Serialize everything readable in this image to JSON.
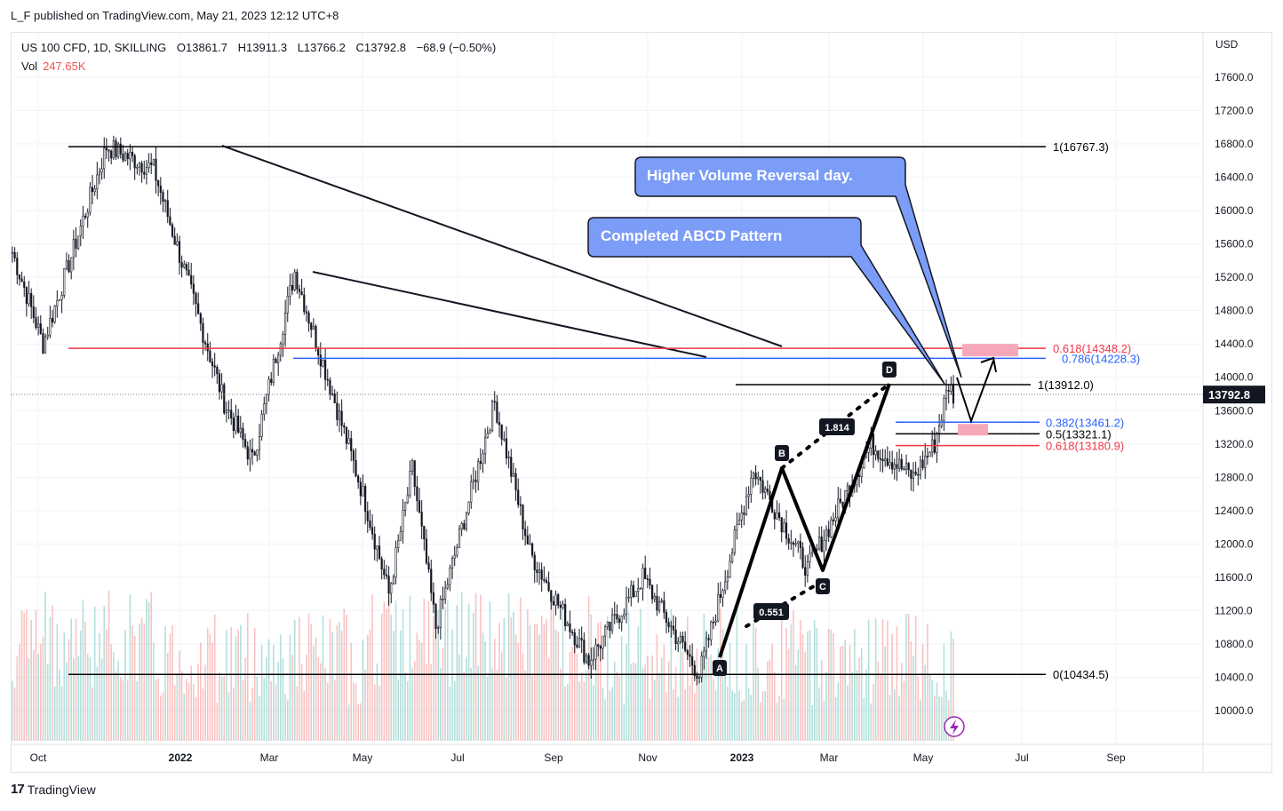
{
  "header": {
    "published": "L_F published on TradingView.com, May 21, 2023 12:12 UTC+8",
    "symbol": "US 100 CFD, 1D, SKILLING",
    "open": "O13861.7",
    "high": "H13911.3",
    "low": "L13766.2",
    "close": "C13792.8",
    "change": "−68.9 (−0.50%)",
    "vol_label": "Vol",
    "vol_value": "247.65K",
    "currency": "USD"
  },
  "footer": {
    "brand": "TradingView"
  },
  "colors": {
    "up": "#26a69a",
    "down": "#ef5350",
    "blue_level": "#2962ff",
    "red_level": "#f23645",
    "callout": "#7b9cf7"
  },
  "chart_data": {
    "type": "candlestick",
    "price_axis": {
      "min": 9800,
      "max": 17700,
      "ticks": [
        17600,
        17200,
        16800,
        16400,
        16000,
        15600,
        15200,
        14800,
        14400,
        14000,
        13600,
        13200,
        12800,
        12400,
        12000,
        11600,
        11200,
        10800,
        10400,
        10000
      ],
      "tick_labels": [
        "17600.0",
        "17200.0",
        "16800.0",
        "16400.0",
        "16000.0",
        "15600.0",
        "15200.0",
        "14800.0",
        "14400.0",
        "14000.0",
        "13600.0",
        "13200.0",
        "12800.0",
        "12400.0",
        "12000.0",
        "11600.0",
        "11200.0",
        "10800.0",
        "10400.0",
        "10000.0"
      ]
    },
    "time_axis": {
      "labels": [
        "Oct",
        "2022",
        "Mar",
        "May",
        "Jul",
        "Sep",
        "Nov",
        "2023",
        "Mar",
        "May",
        "Jul",
        "Sep"
      ]
    },
    "last_price": {
      "value": 13792.8,
      "label": "13792.8"
    },
    "swings": [
      {
        "t": 0,
        "p": 15500
      },
      {
        "t": 13,
        "p": 14400
      },
      {
        "t": 40,
        "p": 16767
      },
      {
        "t": 60,
        "p": 16500
      },
      {
        "t": 90,
        "p": 13700
      },
      {
        "t": 102,
        "p": 13000
      },
      {
        "t": 120,
        "p": 15265
      },
      {
        "t": 135,
        "p": 13900
      },
      {
        "t": 150,
        "p": 12500
      },
      {
        "t": 160,
        "p": 11400
      },
      {
        "t": 170,
        "p": 12900
      },
      {
        "t": 180,
        "p": 11000
      },
      {
        "t": 205,
        "p": 13700
      },
      {
        "t": 220,
        "p": 11900
      },
      {
        "t": 245,
        "p": 10600
      },
      {
        "t": 268,
        "p": 11600
      },
      {
        "t": 282,
        "p": 10900
      },
      {
        "t": 292,
        "p": 10434
      },
      {
        "t": 315,
        "p": 12900
      },
      {
        "t": 338,
        "p": 11700
      },
      {
        "t": 365,
        "p": 13200
      },
      {
        "t": 383,
        "p": 12800
      },
      {
        "t": 392,
        "p": 13200
      },
      {
        "t": 398,
        "p": 13911
      },
      {
        "t": 400,
        "p": 13792
      }
    ],
    "fib_levels": [
      {
        "label": "1(16767.3)",
        "value": 16767.3,
        "color": "#000000"
      },
      {
        "label": "0.618(14348.2)",
        "value": 14348.2,
        "color": "#f23645"
      },
      {
        "label": "0.786(14228.3)",
        "value": 14228.3,
        "color": "#2962ff"
      },
      {
        "label": "1(13912.0)",
        "value": 13912.0,
        "color": "#000000"
      },
      {
        "label": "0.382(13461.2)",
        "value": 13461.2,
        "color": "#2962ff"
      },
      {
        "label": "0.5(13321.1)",
        "value": 13321.1,
        "color": "#000000"
      },
      {
        "label": "0.618(13180.9)",
        "value": 13180.9,
        "color": "#f23645"
      },
      {
        "label": "0(10434.5)",
        "value": 10434.5,
        "color": "#000000"
      }
    ],
    "abcd": [
      {
        "label": "A",
        "value": 10600
      },
      {
        "label": "B",
        "value": 12950
      },
      {
        "label": "C",
        "value": 11700
      },
      {
        "label": "D",
        "value": 13912
      }
    ],
    "ratios": [
      {
        "label": "1.814"
      },
      {
        "label": "0.551"
      }
    ],
    "callouts": [
      {
        "text": "Higher Volume Reversal day."
      },
      {
        "text": "Completed ABCD Pattern"
      }
    ]
  }
}
